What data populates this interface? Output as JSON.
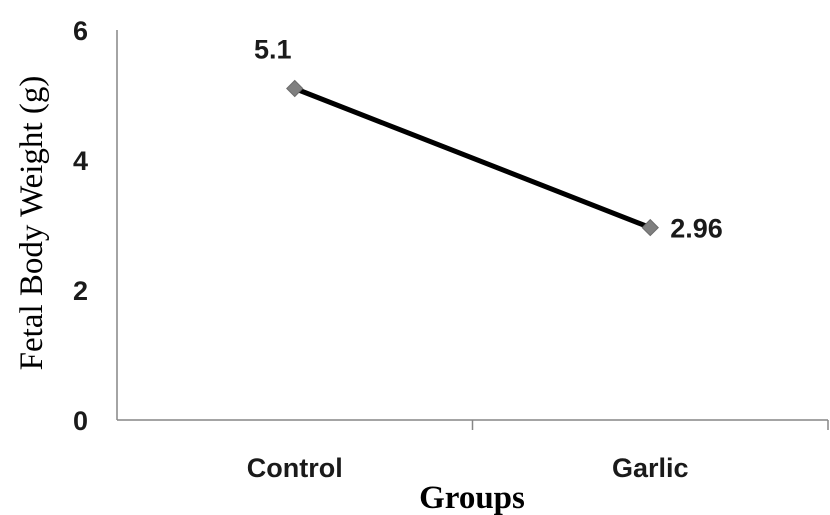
{
  "chart_data": {
    "type": "line",
    "categories": [
      "Control",
      "Garlic"
    ],
    "series": [
      {
        "values": [
          5.1,
          2.96
        ],
        "data_labels": [
          "5.1",
          "2.96"
        ]
      }
    ],
    "title": "",
    "xlabel": "Groups",
    "ylabel": "Fetal Body Weight (g)",
    "ylim": [
      0,
      6
    ],
    "yticks": [
      "0",
      "2",
      "4",
      "6"
    ],
    "ytick_values": [
      0,
      2,
      4,
      6
    ],
    "grid": false,
    "legend": "none",
    "line_color": "#000000",
    "marker_color": "#7f7f7f",
    "marker_shape": "diamond"
  }
}
